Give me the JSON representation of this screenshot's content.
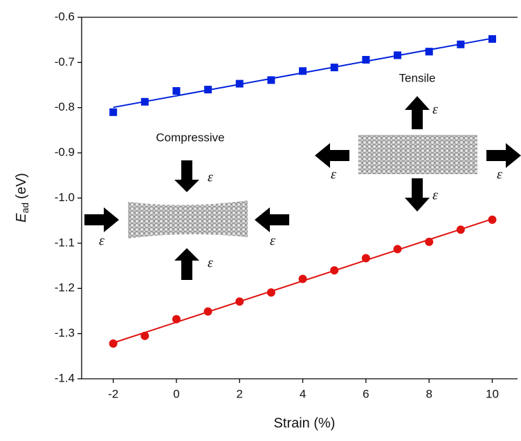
{
  "chart_data": {
    "type": "scatter",
    "xlabel": "Strain (%)",
    "ylabel": {
      "symbol": "E",
      "subscript": "ad",
      "unit": "(eV)"
    },
    "x": [
      -2,
      -1,
      0,
      1,
      2,
      3,
      4,
      5,
      6,
      7,
      8,
      9,
      10
    ],
    "series": [
      {
        "color": "#0022dd",
        "marker": "square",
        "values": [
          -0.81,
          -0.787,
          -0.763,
          -0.76,
          -0.747,
          -0.739,
          -0.719,
          -0.711,
          -0.694,
          -0.684,
          -0.676,
          -0.66,
          -0.648
        ]
      },
      {
        "color": "#e0120f",
        "marker": "circle",
        "values": [
          -1.322,
          -1.305,
          -1.268,
          -1.251,
          -1.229,
          -1.209,
          -1.179,
          -1.16,
          -1.133,
          -1.113,
          -1.097,
          -1.07,
          -1.048
        ]
      }
    ],
    "fit_lines": true,
    "xlim": [
      -3,
      10.8
    ],
    "ylim": [
      -1.4,
      -0.6
    ],
    "xticks": [
      -2,
      0,
      2,
      4,
      6,
      8,
      10
    ],
    "yticks": [
      {
        "value": -1.4,
        "label": "-1.4"
      },
      {
        "value": -1.3,
        "label": "-1.3"
      },
      {
        "value": -1.2,
        "label": "-1.2"
      },
      {
        "value": -1.1,
        "label": "-1.1"
      },
      {
        "value": -1.0,
        "label": "-1.0"
      },
      {
        "value": -0.9,
        "label": "-0.9"
      },
      {
        "value": -0.8,
        "label": "-0.8"
      },
      {
        "value": -0.7,
        "label": "-0.7"
      },
      {
        "value": -0.6,
        "label": "-0.6"
      }
    ],
    "annotations": {
      "compressive": "Compressive",
      "tensile": "Tensile",
      "strain_symbol": "ε"
    }
  }
}
